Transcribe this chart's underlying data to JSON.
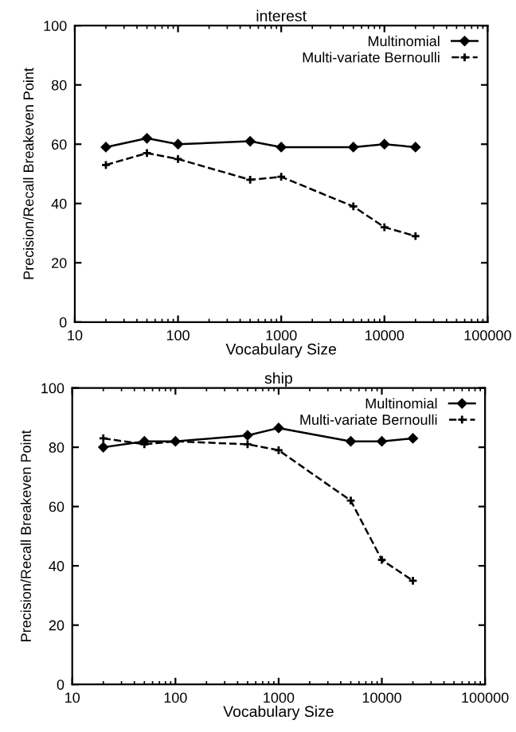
{
  "chart_data": [
    {
      "type": "line",
      "title": "interest",
      "xlabel": "Vocabulary Size",
      "ylabel": "Precision/Recall Breakeven Point",
      "log": "x",
      "x": [
        20,
        50,
        100,
        500,
        1000,
        5000,
        10000,
        20000
      ],
      "series": [
        {
          "name": "Multinomial",
          "color": "#000000",
          "line_style": "solid",
          "marker": "diamond",
          "values": [
            59,
            62,
            60,
            61,
            59,
            59,
            60,
            59
          ]
        },
        {
          "name": "Multi-variate Bernoulli",
          "color": "#000000",
          "line_style": "dashed",
          "marker": "cross",
          "values": [
            53,
            57,
            55,
            48,
            49,
            39,
            32,
            29
          ]
        }
      ],
      "xlim": [
        10,
        100000
      ],
      "xticks": [
        10,
        100,
        1000,
        10000,
        100000
      ],
      "ylim": [
        0,
        100
      ],
      "yticks": [
        0,
        20,
        40,
        60,
        80,
        100
      ],
      "legend": "top right",
      "grid": false
    },
    {
      "type": "line",
      "title": "ship",
      "xlabel": "Vocabulary Size",
      "ylabel": "Precision/Recall Breakeven Point",
      "log": "x",
      "x": [
        20,
        50,
        100,
        500,
        1000,
        5000,
        10000,
        20000
      ],
      "series": [
        {
          "name": "Multinomial",
          "color": "#000000",
          "line_style": "solid",
          "marker": "diamond",
          "values": [
            80,
            82,
            82,
            84,
            86.5,
            82,
            82,
            83
          ]
        },
        {
          "name": "Multi-variate Bernoulli",
          "color": "#000000",
          "line_style": "dashed",
          "marker": "cross",
          "values": [
            83,
            81,
            82,
            81,
            79,
            62,
            42,
            35
          ]
        }
      ],
      "xlim": [
        10,
        100000
      ],
      "xticks": [
        10,
        100,
        1000,
        10000,
        100000
      ],
      "ylim": [
        0,
        100
      ],
      "yticks": [
        0,
        20,
        40,
        60,
        80,
        100
      ],
      "legend": "top right",
      "grid": false
    }
  ]
}
